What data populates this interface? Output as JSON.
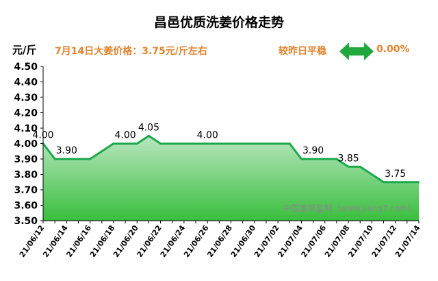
{
  "title": "昌邑优质洗姜价格走势",
  "unit_label": "元/斤",
  "headline": "7月14日大姜价格：3.75元/斤左右",
  "compare_label": "较昨日平稳",
  "change_value": "0.00%",
  "trend_icon": "double-arrow-icon",
  "watermark": "中国姜网监制（www.jiang7.com）",
  "colors": {
    "line": "#1aa84a",
    "fill_top": "#b9e6bf",
    "fill_bottom": "#39bf3e",
    "accent_text": "#e2822c",
    "arrow": "#1fa83c"
  },
  "chart_data": {
    "type": "area",
    "title": "昌邑优质洗姜价格走势",
    "ylabel": "元/斤",
    "ylim": [
      3.5,
      4.5
    ],
    "yticks": [
      "3.50",
      "3.60",
      "3.70",
      "3.80",
      "3.90",
      "4.00",
      "4.10",
      "4.20",
      "4.30",
      "4.40",
      "4.50"
    ],
    "xticks": [
      "21/06/12",
      "21/06/14",
      "21/06/16",
      "21/06/18",
      "21/06/20",
      "21/06/22",
      "21/06/24",
      "21/06/26",
      "21/06/28",
      "21/06/30",
      "21/07/02",
      "21/07/04",
      "21/07/06",
      "21/07/08",
      "21/07/10",
      "21/07/12",
      "21/07/14"
    ],
    "x": [
      "2021-06-12",
      "2021-06-13",
      "2021-06-15",
      "2021-06-16",
      "2021-06-18",
      "2021-06-20",
      "2021-06-21",
      "2021-06-22",
      "2021-07-03",
      "2021-07-04",
      "2021-07-06",
      "2021-07-07",
      "2021-07-08",
      "2021-07-09",
      "2021-07-10",
      "2021-07-11",
      "2021-07-14"
    ],
    "values": [
      4.0,
      3.9,
      3.9,
      3.9,
      4.0,
      4.0,
      4.05,
      4.0,
      4.0,
      3.9,
      3.9,
      3.9,
      3.85,
      3.85,
      3.8,
      3.75,
      3.75
    ],
    "data_labels": [
      {
        "x": "2021-06-12",
        "text": "4.00"
      },
      {
        "x": "2021-06-14",
        "text": "3.90"
      },
      {
        "x": "2021-06-19",
        "text": "4.00"
      },
      {
        "x": "2021-06-21",
        "text": "4.05"
      },
      {
        "x": "2021-06-26",
        "text": "4.00"
      },
      {
        "x": "2021-07-05",
        "text": "3.90"
      },
      {
        "x": "2021-07-08",
        "text": "3.85"
      },
      {
        "x": "2021-07-12",
        "text": "3.75"
      }
    ],
    "grid": false,
    "legend": "none"
  }
}
